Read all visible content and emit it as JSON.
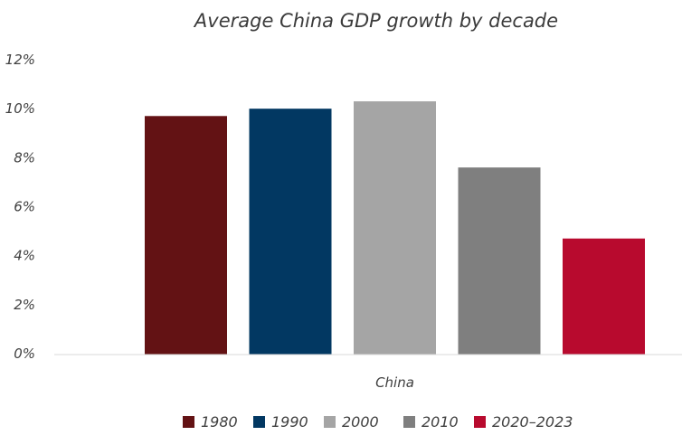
{
  "chart_data": {
    "type": "bar",
    "title": "Average China GDP growth by decade",
    "xlabel": "",
    "ylabel": "",
    "categories": [
      "China"
    ],
    "series": [
      {
        "name": "1980",
        "values": [
          9.7
        ],
        "color": "#631214"
      },
      {
        "name": "1990",
        "values": [
          10.0
        ],
        "color": "#023862"
      },
      {
        "name": "2000",
        "values": [
          10.3
        ],
        "color": "#a5a5a5"
      },
      {
        "name": "2010",
        "values": [
          7.6
        ],
        "color": "#7f7f7f"
      },
      {
        "name": "2020-2023",
        "values": [
          4.7
        ],
        "color": "#b80a2e"
      }
    ],
    "ylim": [
      0,
      12
    ],
    "yticks": [
      0,
      2,
      4,
      6,
      8,
      10,
      12
    ],
    "ytick_labels": [
      "0%",
      "2%",
      "4%",
      "6%",
      "8%",
      "10%",
      "12%"
    ],
    "grid": false,
    "legend_position": "bottom",
    "axis_color": "#d9d9d9"
  }
}
